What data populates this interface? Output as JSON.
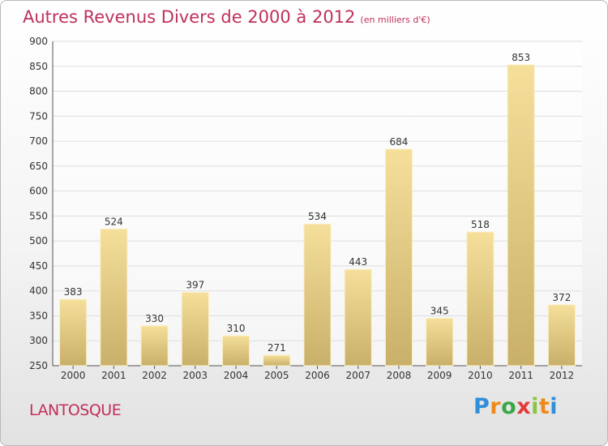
{
  "title": "Autres Revenus Divers de 2000 à 2012",
  "subtitle": "(en milliers d'€)",
  "commune": "LANTOSQUE",
  "logo": {
    "p": "P",
    "r": "r",
    "o": "o",
    "x": "x",
    "i1": "i",
    "t": "t",
    "i2": "i"
  },
  "colors": {
    "title": "#c0305a",
    "bar_light": "#f5df9a",
    "bar_dark": "#c9b06a",
    "grid": "#dddddd"
  },
  "chart_data": {
    "type": "bar",
    "categories": [
      "2000",
      "2001",
      "2002",
      "2003",
      "2004",
      "2005",
      "2006",
      "2007",
      "2008",
      "2009",
      "2010",
      "2011",
      "2012"
    ],
    "values": [
      383,
      524,
      330,
      397,
      310,
      271,
      534,
      443,
      684,
      345,
      518,
      853,
      372
    ],
    "ylim": [
      250,
      900
    ],
    "yticks": [
      250,
      300,
      350,
      400,
      450,
      500,
      550,
      600,
      650,
      700,
      750,
      800,
      850,
      900
    ],
    "grid": true,
    "legend": "none"
  }
}
